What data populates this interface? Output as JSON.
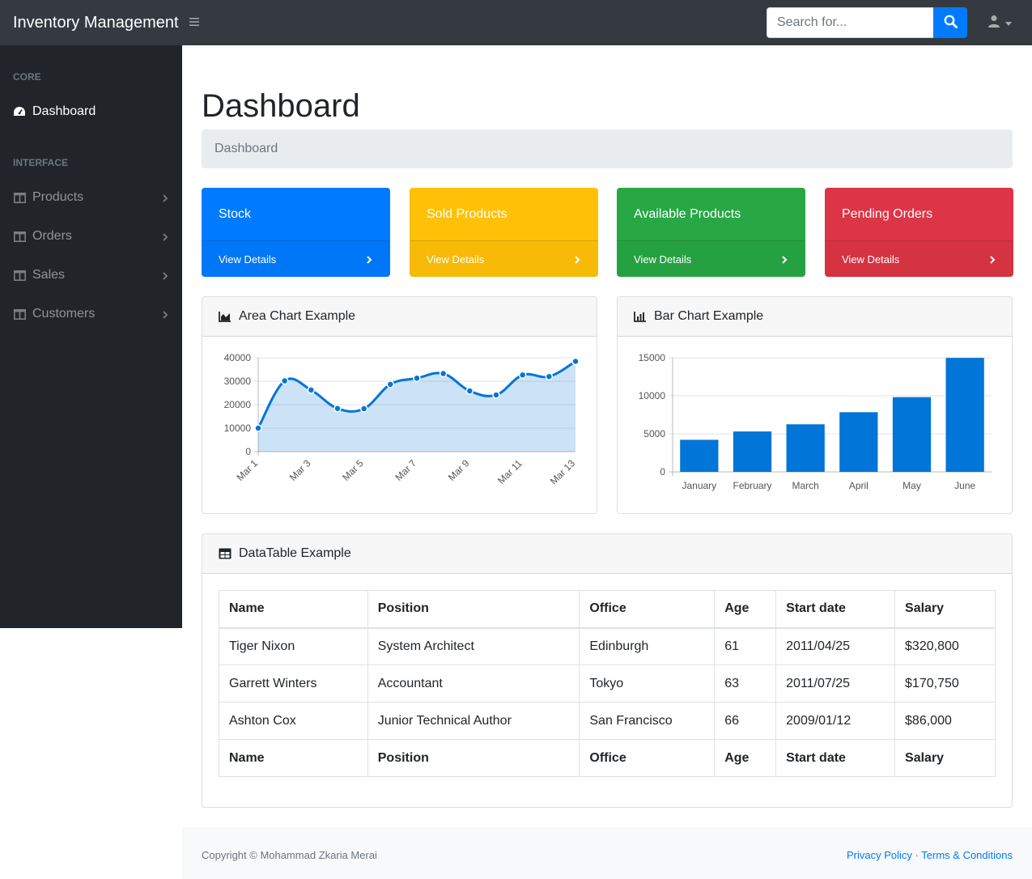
{
  "navbar": {
    "brand": "Inventory Management",
    "search_placeholder": "Search for..."
  },
  "sidebar": {
    "headings": [
      "CORE",
      "INTERFACE"
    ],
    "dashboard_label": "Dashboard",
    "items": [
      {
        "label": "Products"
      },
      {
        "label": "Orders"
      },
      {
        "label": "Sales"
      },
      {
        "label": "Customers"
      }
    ]
  },
  "main": {
    "title": "Dashboard",
    "breadcrumb": "Dashboard",
    "cards": [
      {
        "title": "Stock",
        "link": "View Details",
        "color": "#007bff"
      },
      {
        "title": "Sold Products",
        "link": "View Details",
        "color": "#ffc107"
      },
      {
        "title": "Available Products",
        "link": "View Details",
        "color": "#28a745"
      },
      {
        "title": "Pending Orders",
        "link": "View Details",
        "color": "#dc3545"
      }
    ],
    "area_chart_title": "Area Chart Example",
    "bar_chart_title": "Bar Chart Example",
    "table_title": "DataTable Example"
  },
  "chart_data": [
    {
      "type": "area",
      "x": [
        "Mar 1",
        "Mar 2",
        "Mar 3",
        "Mar 4",
        "Mar 5",
        "Mar 6",
        "Mar 7",
        "Mar 8",
        "Mar 9",
        "Mar 10",
        "Mar 11",
        "Mar 12",
        "Mar 13"
      ],
      "x_tick_labels": [
        "Mar 1",
        "Mar 3",
        "Mar 5",
        "Mar 7",
        "Mar 9",
        "Mar 11",
        "Mar 13"
      ],
      "values": [
        10000,
        30162,
        26263,
        18394,
        18287,
        28682,
        31274,
        33259,
        25849,
        24159,
        32651,
        31984,
        38451
      ],
      "ylim": [
        0,
        40000
      ],
      "yticks": [
        0,
        10000,
        20000,
        30000,
        40000
      ],
      "grid": true,
      "color": "#007bff"
    },
    {
      "type": "bar",
      "categories": [
        "January",
        "February",
        "March",
        "April",
        "May",
        "June"
      ],
      "values": [
        4215,
        5312,
        6251,
        7841,
        9821,
        14984
      ],
      "ylim": [
        0,
        15000
      ],
      "yticks": [
        0,
        5000,
        10000,
        15000
      ],
      "grid": true,
      "color": "#0275d8"
    }
  ],
  "table": {
    "headers": [
      "Name",
      "Position",
      "Office",
      "Age",
      "Start date",
      "Salary"
    ],
    "rows": [
      [
        "Tiger Nixon",
        "System Architect",
        "Edinburgh",
        "61",
        "2011/04/25",
        "$320,800"
      ],
      [
        "Garrett Winters",
        "Accountant",
        "Tokyo",
        "63",
        "2011/07/25",
        "$170,750"
      ],
      [
        "Ashton Cox",
        "Junior Technical Author",
        "San Francisco",
        "66",
        "2009/01/12",
        "$86,000"
      ]
    ]
  },
  "footer": {
    "copyright": "Copyright © Mohammad Zkaria Merai",
    "privacy": "Privacy Policy",
    "separator": "·",
    "terms": "Terms & Conditions"
  }
}
